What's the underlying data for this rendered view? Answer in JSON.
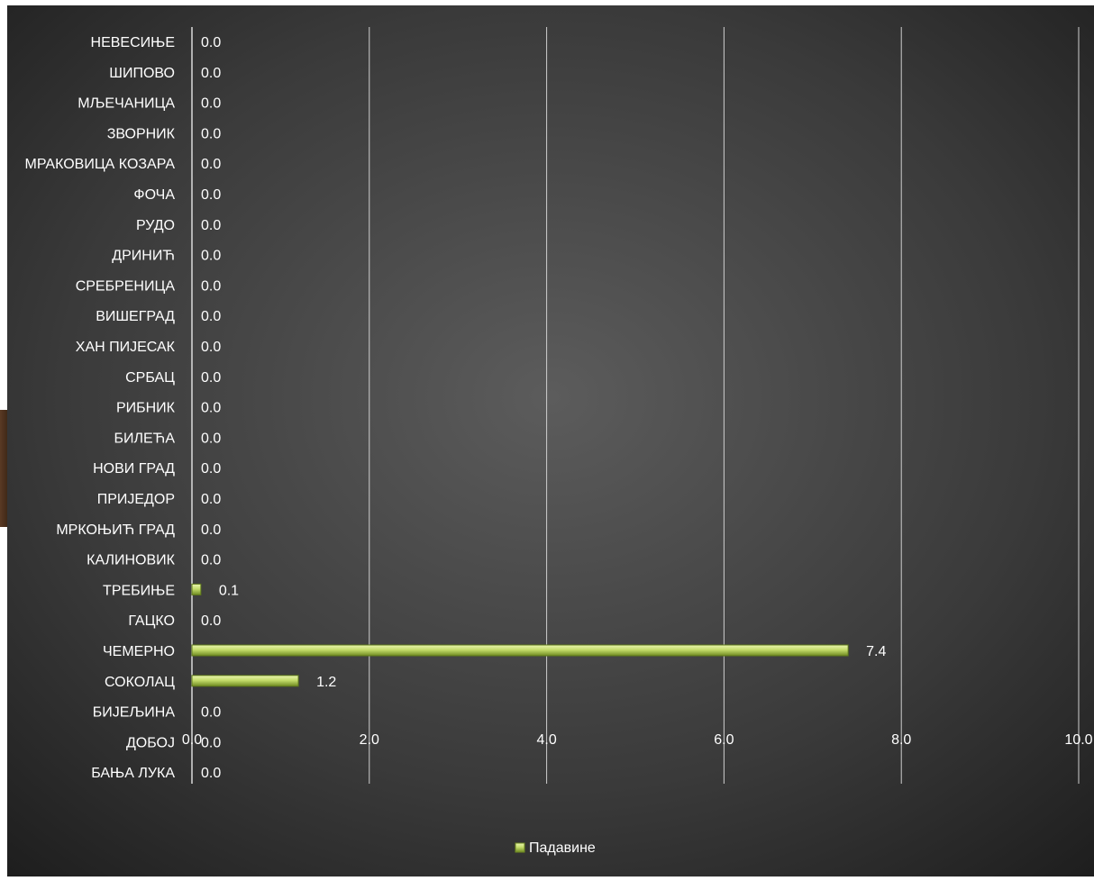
{
  "chart_data": {
    "type": "bar",
    "orientation": "horizontal",
    "categories": [
      "НЕВЕСИЊЕ",
      "ШИПОВО",
      "МЉЕЧАНИЦА",
      "ЗВОРНИК",
      "МРАКОВИЦА КОЗАРА",
      "ФОЧА",
      "РУДО",
      "ДРИНИЋ",
      "СРЕБРЕНИЦА",
      "ВИШЕГРАД",
      "ХАН ПИЈЕСАК",
      "СРБАЦ",
      "РИБНИК",
      "БИЛЕЋА",
      "НОВИ ГРАД",
      "ПРИЈЕДОР",
      "МРКОЊИЋ ГРАД",
      "КАЛИНОВИК",
      "ТРЕБИЊЕ",
      "ГАЦКО",
      "ЧЕМЕРНО",
      "СОКОЛАЦ",
      "БИЈЕЉИНА",
      "ДОБОЈ",
      "БАЊА ЛУКА"
    ],
    "series": [
      {
        "name": "Падавине",
        "values": [
          0,
          0,
          0,
          0,
          0,
          0,
          0,
          0,
          0,
          0,
          0,
          0,
          0,
          0,
          0,
          0,
          0,
          0,
          0.1,
          0,
          7.4,
          1.2,
          0,
          0,
          0
        ],
        "labels": [
          "0.0",
          "0.0",
          "0.0",
          "0.0",
          "0.0",
          "0.0",
          "0.0",
          "0.0",
          "0.0",
          "0.0",
          "0.0",
          "0.0",
          "0.0",
          "0.0",
          "0.0",
          "0.0",
          "0.0",
          "0.0",
          "0.1",
          "0.0",
          "7.4",
          "1.2",
          "0.0",
          "0.0",
          "0.0"
        ]
      }
    ],
    "xticks": [
      "0.0",
      "2.0",
      "4.0",
      "6.0",
      "8.0",
      "10.0"
    ],
    "xlim": [
      0,
      10
    ],
    "grid": true,
    "legend_position": "bottom",
    "colors": {
      "background_center": "#5a5a5a",
      "background_edge": "#1f1f1f",
      "bar_fill": "#c4dc6a",
      "bar_highlight": "#eaf5b0",
      "bar_shadow": "#6f8a22",
      "gridline": "#d9d9d9",
      "text": "#ffffff"
    }
  }
}
